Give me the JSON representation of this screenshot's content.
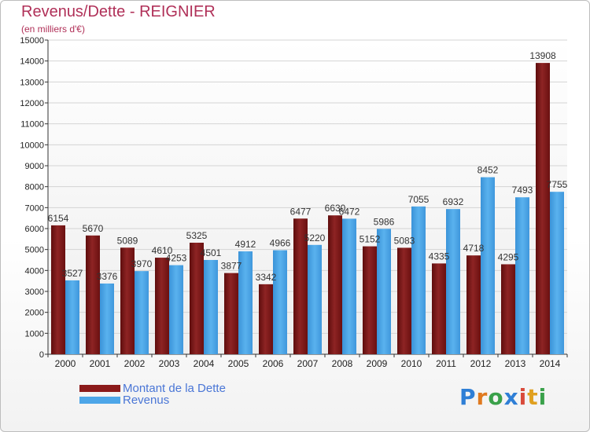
{
  "header": {
    "title": "Revenus/Dette - REIGNIER",
    "subtitle": "(en milliers d'€)"
  },
  "logo": {
    "text": "Proxiti"
  },
  "chart_data": {
    "type": "bar",
    "title": "Revenus/Dette - REIGNIER",
    "ylabel": "(en milliers d'€)",
    "ylim": [
      0,
      15000
    ],
    "yticks": [
      0,
      1000,
      2000,
      3000,
      4000,
      5000,
      6000,
      7000,
      8000,
      9000,
      10000,
      11000,
      12000,
      13000,
      14000,
      15000
    ],
    "grid": true,
    "legend_position": "bottom-left",
    "categories": [
      "2000",
      "2001",
      "2002",
      "2003",
      "2004",
      "2005",
      "2006",
      "2007",
      "2008",
      "2009",
      "2010",
      "2011",
      "2012",
      "2013",
      "2014"
    ],
    "series": [
      {
        "name": "Montant de la Dette",
        "color": "#8b1a1a",
        "values": [
          6154,
          5670,
          5089,
          4610,
          5325,
          3877,
          3342,
          6477,
          6630,
          5152,
          5083,
          4335,
          4718,
          4295,
          13908
        ],
        "labels": [
          "6154",
          "5670",
          "5089",
          "4610",
          "5325",
          "3877",
          "3342",
          "6477",
          "6630",
          "5152",
          "5083",
          "4335",
          "4718",
          "4295",
          "13908"
        ]
      },
      {
        "name": "Revenus",
        "color": "#4da6e8",
        "values": [
          3527,
          3376,
          3970,
          4253,
          4501,
          4912,
          4966,
          5220,
          6472,
          5986,
          7055,
          6932,
          8452,
          7493,
          7755
        ],
        "labels": [
          "3527",
          "3376",
          "3970",
          "4253",
          "4501",
          "4912",
          "4966",
          "5220",
          "6472",
          "5986",
          "7055",
          "6932",
          "8452",
          "7493",
          "7755"
        ]
      }
    ]
  }
}
